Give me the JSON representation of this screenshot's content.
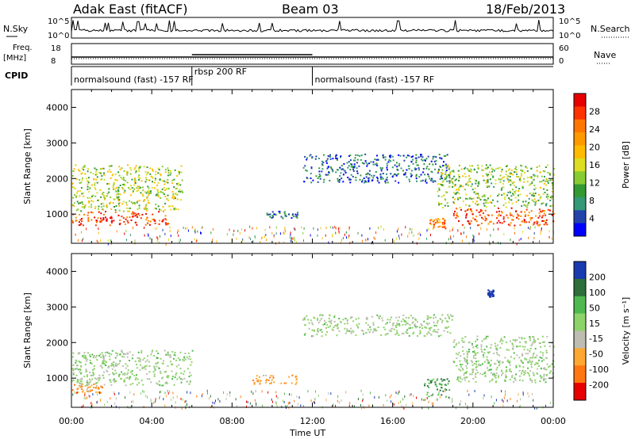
{
  "header": {
    "site": "Adak East (fitACF)",
    "beam": "Beam 03",
    "date": "18/Feb/2013"
  },
  "strips": {
    "nsky_label": "N.Sky",
    "nsky_ticks": [
      "10^5",
      "10^0"
    ],
    "nsearch_label": "N.Search",
    "nsearch_ticks": [
      "10^5",
      "10^0"
    ],
    "freq_label": "Freq.",
    "freq_unit": "[MHz]",
    "freq_ticks": [
      "18",
      "8"
    ],
    "nave_label": "Nave",
    "nave_ticks": [
      "60",
      "0"
    ],
    "cpid_label": "CPID",
    "cpid_segments": [
      {
        "label": "normalsound (fast) -157 RF",
        "start_h": 0,
        "end_h": 6
      },
      {
        "label": "rbsp 200 RF",
        "start_h": 6,
        "end_h": 12
      },
      {
        "label": "normalsound (fast) -157 RF",
        "start_h": 12,
        "end_h": 24
      }
    ]
  },
  "x_axis": {
    "label": "Time UT",
    "ticks": [
      "00:00",
      "04:00",
      "08:00",
      "12:00",
      "16:00",
      "20:00",
      "00:00"
    ]
  },
  "chart_data": [
    {
      "type": "heatmap",
      "quantity": "Power",
      "ylabel": "Slant Range [km]",
      "yticks": [
        "4000",
        "3000",
        "2000",
        "1000"
      ],
      "ylim": [
        180,
        4500
      ],
      "xlim_hours": [
        0,
        24
      ],
      "colorbar_label": "Power [dB]",
      "colorbar_ticks": [
        "28",
        "24",
        "20",
        "16",
        "12",
        "8",
        "4"
      ],
      "colorbar_colors": [
        "#e60000",
        "#ff3300",
        "#ff7700",
        "#ff9900",
        "#ffbb00",
        "#dddd22",
        "#88cc33",
        "#339933",
        "#339977",
        "#2244aa",
        "#0000ff"
      ],
      "features": [
        {
          "t0": 0.0,
          "t1": 4.8,
          "r0": 700,
          "r1": 1100,
          "level": 0.9
        },
        {
          "t0": 0.0,
          "t1": 5.5,
          "r0": 1100,
          "r1": 2400,
          "level": 0.45
        },
        {
          "t0": 9.6,
          "t1": 11.3,
          "r0": 900,
          "r1": 1100,
          "level": 0.2
        },
        {
          "t0": 11.5,
          "t1": 18.8,
          "r0": 1900,
          "r1": 2700,
          "level": 0.15
        },
        {
          "t0": 17.8,
          "t1": 18.6,
          "r0": 600,
          "r1": 900,
          "level": 0.75
        },
        {
          "t0": 19.0,
          "t1": 24.0,
          "r0": 700,
          "r1": 1200,
          "level": 0.85
        },
        {
          "t0": 18.2,
          "t1": 24.0,
          "r0": 1200,
          "r1": 2400,
          "level": 0.4
        }
      ]
    },
    {
      "type": "heatmap",
      "quantity": "Velocity",
      "ylabel": "Slant Range [km]",
      "yticks": [
        "4000",
        "3000",
        "2000",
        "1000"
      ],
      "ylim": [
        180,
        4500
      ],
      "xlim_hours": [
        0,
        24
      ],
      "colorbar_label": "Velocity [m s⁻¹]",
      "colorbar_ticks": [
        "200",
        "100",
        "50",
        "15",
        "-15",
        "-50",
        "-100",
        "-200"
      ],
      "colorbar_colors": [
        "#1a3ab0",
        "#2d6e3a",
        "#4fb84f",
        "#8ed36a",
        "#bdbdb2",
        "#ffa733",
        "#ff7711",
        "#e60000"
      ],
      "features": [
        {
          "t0": 0.0,
          "t1": 6.0,
          "r0": 800,
          "r1": 1800,
          "level": 0.55
        },
        {
          "t0": 0.0,
          "t1": 1.5,
          "r0": 600,
          "r1": 850,
          "level": 0.25
        },
        {
          "t0": 9.0,
          "t1": 11.2,
          "r0": 850,
          "r1": 1100,
          "level": 0.25
        },
        {
          "t0": 11.5,
          "t1": 19.0,
          "r0": 2200,
          "r1": 2800,
          "level": 0.55
        },
        {
          "t0": 17.5,
          "t1": 18.8,
          "r0": 400,
          "r1": 1000,
          "level": 0.75
        },
        {
          "t0": 19.0,
          "t1": 24.0,
          "r0": 900,
          "r1": 2200,
          "level": 0.55
        },
        {
          "t0": 20.7,
          "t1": 21.0,
          "r0": 3300,
          "r1": 3500,
          "level": 1.0
        }
      ]
    }
  ]
}
